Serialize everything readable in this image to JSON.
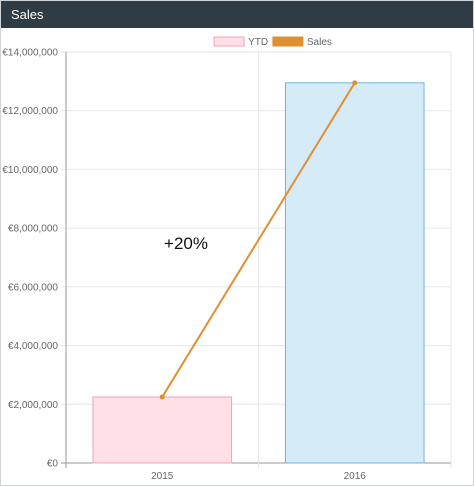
{
  "panel": {
    "title": "Sales"
  },
  "chart_data": {
    "type": "bar",
    "categories": [
      "2015",
      "2016"
    ],
    "series": [
      {
        "name": "YTD",
        "type": "bar",
        "values": [
          2250000,
          12950000
        ],
        "fill": [
          "#ffe0e6",
          "#d6ebf8"
        ],
        "stroke": [
          "#f0a3b5",
          "#6fb3e0"
        ]
      },
      {
        "name": "Sales",
        "type": "line",
        "values": [
          2250000,
          12950000
        ],
        "color": "#e09030"
      }
    ],
    "ylim": [
      0,
      14000000
    ],
    "yticks": [
      0,
      2000000,
      4000000,
      6000000,
      8000000,
      10000000,
      12000000,
      14000000
    ],
    "ytick_labels": [
      "€0",
      "€2,000,000",
      "€4,000,000",
      "€6,000,000",
      "€8,000,000",
      "€10,000,000",
      "€12,000,000",
      "€14,000,000"
    ],
    "legend": {
      "position": "top-center",
      "entries": [
        "YTD",
        "Sales"
      ]
    },
    "annotations": [
      {
        "text": "+20%"
      }
    ],
    "grid": true
  }
}
